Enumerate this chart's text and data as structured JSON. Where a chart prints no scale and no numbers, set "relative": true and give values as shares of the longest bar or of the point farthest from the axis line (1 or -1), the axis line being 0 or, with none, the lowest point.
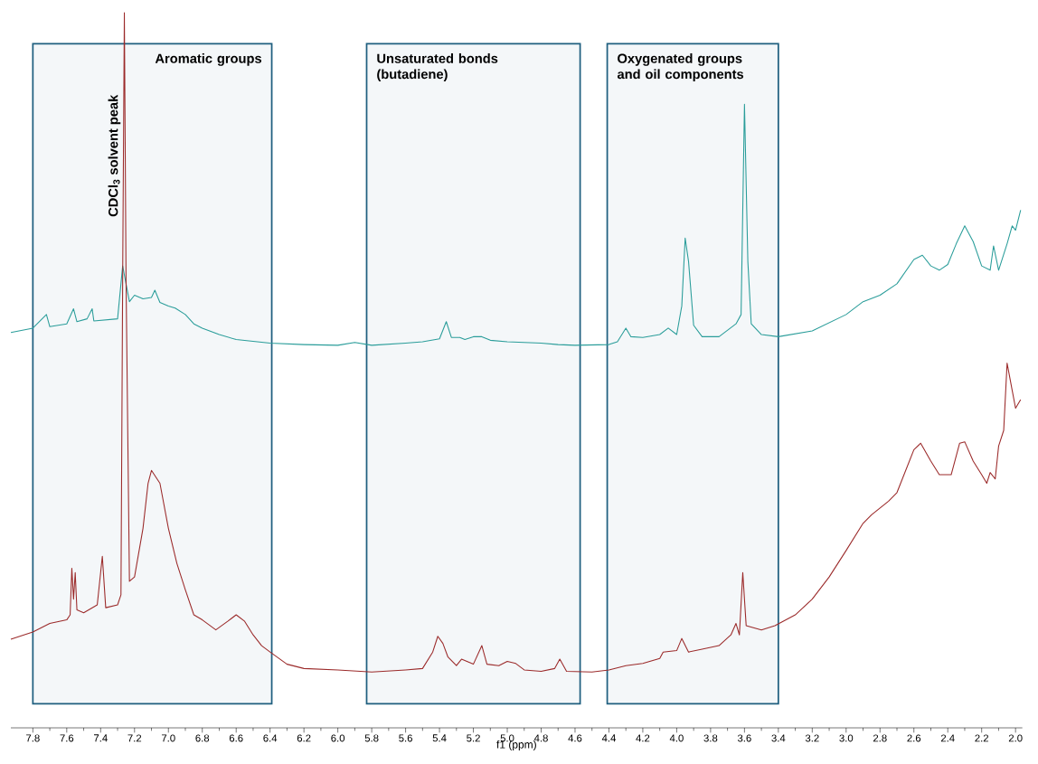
{
  "chart_data": {
    "type": "line",
    "relative": true,
    "xlabel": "f1 (ppm)",
    "xlim": [
      7.93,
      1.96
    ],
    "xticks": [
      7.8,
      7.6,
      7.4,
      7.2,
      {
        "value": 7.0,
        "label": "7.0"
      },
      6.8,
      6.6,
      6.4,
      6.2,
      {
        "value": 6.0,
        "label": "6.0"
      },
      5.8,
      5.6,
      5.4,
      5.2,
      {
        "value": 5.0,
        "label": "5.0"
      },
      4.8,
      4.6,
      4.4,
      4.2,
      {
        "value": 4.0,
        "label": "4.0"
      },
      3.8,
      3.6,
      3.4,
      3.2,
      {
        "value": 3.0,
        "label": "3.0"
      },
      2.8,
      2.6,
      2.4,
      2.2,
      {
        "value": 2.0,
        "label": "2.0"
      }
    ],
    "series": [
      {
        "color": "#2a9d9a",
        "x": [
          7.93,
          7.8,
          7.72,
          7.7,
          7.6,
          7.56,
          7.54,
          7.48,
          7.45,
          7.44,
          7.3,
          7.27,
          7.23,
          7.2,
          7.15,
          7.1,
          7.08,
          7.05,
          7.0,
          6.96,
          6.9,
          6.85,
          6.8,
          6.7,
          6.6,
          6.4,
          6.2,
          6.0,
          5.9,
          5.8,
          5.6,
          5.5,
          5.4,
          5.36,
          5.33,
          5.28,
          5.25,
          5.2,
          5.15,
          5.1,
          5.0,
          4.9,
          4.8,
          4.7,
          4.6,
          4.4,
          4.35,
          4.3,
          4.27,
          4.2,
          4.1,
          4.05,
          4.0,
          3.97,
          3.95,
          3.93,
          3.9,
          3.85,
          3.75,
          3.65,
          3.62,
          3.6,
          3.58,
          3.56,
          3.5,
          3.4,
          3.2,
          3.0,
          2.9,
          2.8,
          2.7,
          2.6,
          2.55,
          2.5,
          2.45,
          2.4,
          2.35,
          2.3,
          2.25,
          2.2,
          2.15,
          2.13,
          2.1,
          2.05,
          2.02,
          2.0,
          1.97
        ],
        "values": [
          0.553,
          0.559,
          0.578,
          0.561,
          0.565,
          0.586,
          0.568,
          0.572,
          0.586,
          0.569,
          0.572,
          0.646,
          0.596,
          0.605,
          0.6,
          0.602,
          0.612,
          0.595,
          0.59,
          0.587,
          0.578,
          0.565,
          0.559,
          0.55,
          0.543,
          0.538,
          0.536,
          0.535,
          0.539,
          0.535,
          0.538,
          0.54,
          0.544,
          0.568,
          0.546,
          0.546,
          0.543,
          0.547,
          0.547,
          0.542,
          0.54,
          0.539,
          0.538,
          0.536,
          0.535,
          0.536,
          0.54,
          0.559,
          0.547,
          0.546,
          0.55,
          0.559,
          0.55,
          0.59,
          0.685,
          0.652,
          0.563,
          0.547,
          0.547,
          0.565,
          0.578,
          0.872,
          0.652,
          0.565,
          0.55,
          0.547,
          0.555,
          0.578,
          0.596,
          0.605,
          0.621,
          0.655,
          0.661,
          0.646,
          0.64,
          0.648,
          0.677,
          0.702,
          0.68,
          0.646,
          0.64,
          0.674,
          0.64,
          0.677,
          0.702,
          0.696,
          0.724
        ]
      },
      {
        "color": "#9b2a2a",
        "x": [
          7.93,
          7.8,
          7.7,
          7.6,
          7.58,
          7.57,
          7.56,
          7.55,
          7.54,
          7.5,
          7.42,
          7.39,
          7.37,
          7.3,
          7.28,
          7.27,
          7.26,
          7.25,
          7.23,
          7.2,
          7.15,
          7.12,
          7.1,
          7.05,
          7.0,
          6.95,
          6.9,
          6.85,
          6.8,
          6.72,
          6.65,
          6.6,
          6.55,
          6.5,
          6.45,
          6.4,
          6.3,
          6.2,
          6.0,
          5.8,
          5.6,
          5.5,
          5.44,
          5.41,
          5.38,
          5.35,
          5.3,
          5.27,
          5.2,
          5.15,
          5.12,
          5.05,
          5.0,
          4.95,
          4.9,
          4.8,
          4.72,
          4.69,
          4.65,
          4.5,
          4.4,
          4.3,
          4.2,
          4.1,
          4.08,
          4.0,
          3.97,
          3.93,
          3.85,
          3.75,
          3.68,
          3.65,
          3.63,
          3.61,
          3.59,
          3.5,
          3.42,
          3.3,
          3.2,
          3.1,
          3.0,
          2.9,
          2.85,
          2.75,
          2.7,
          2.6,
          2.56,
          2.5,
          2.45,
          2.38,
          2.33,
          2.3,
          2.25,
          2.2,
          2.17,
          2.15,
          2.12,
          2.1,
          2.07,
          2.05,
          2.02,
          2.0,
          1.97
        ],
        "values": [
          0.124,
          0.134,
          0.146,
          0.151,
          0.158,
          0.223,
          0.18,
          0.217,
          0.165,
          0.161,
          0.172,
          0.24,
          0.168,
          0.172,
          0.186,
          0.627,
          1,
          0.627,
          0.205,
          0.211,
          0.279,
          0.342,
          0.36,
          0.342,
          0.279,
          0.23,
          0.193,
          0.158,
          0.151,
          0.137,
          0.149,
          0.158,
          0.149,
          0.13,
          0.115,
          0.106,
          0.089,
          0.083,
          0.081,
          0.078,
          0.081,
          0.083,
          0.106,
          0.128,
          0.118,
          0.099,
          0.087,
          0.096,
          0.089,
          0.115,
          0.089,
          0.087,
          0.093,
          0.09,
          0.081,
          0.079,
          0.083,
          0.096,
          0.079,
          0.078,
          0.081,
          0.087,
          0.09,
          0.097,
          0.106,
          0.108,
          0.125,
          0.106,
          0.11,
          0.115,
          0.13,
          0.146,
          0.13,
          0.217,
          0.143,
          0.137,
          0.143,
          0.158,
          0.18,
          0.211,
          0.248,
          0.286,
          0.298,
          0.317,
          0.329,
          0.389,
          0.398,
          0.373,
          0.354,
          0.354,
          0.398,
          0.4,
          0.373,
          0.354,
          0.342,
          0.357,
          0.348,
          0.394,
          0.416,
          0.51,
          0.472,
          0.447,
          0.459
        ]
      }
    ],
    "bands": [
      {
        "axis": "x",
        "from": 7.8,
        "to": 6.39,
        "label": "Aromatic groups",
        "color": "#1f5f7f"
      },
      {
        "axis": "x",
        "from": 5.83,
        "to": 4.57,
        "label": "Unsaturated bonds (butadiene)",
        "color": "#1f5f7f"
      },
      {
        "axis": "x",
        "from": 4.41,
        "to": 3.4,
        "label": "Oxygenated groups and oil components",
        "color": "#1f5f7f"
      }
    ],
    "annotations": [
      {
        "text": "CDCl$_{3}$ solvent peak",
        "x": 7.26,
        "y": 0.8
      }
    ]
  }
}
